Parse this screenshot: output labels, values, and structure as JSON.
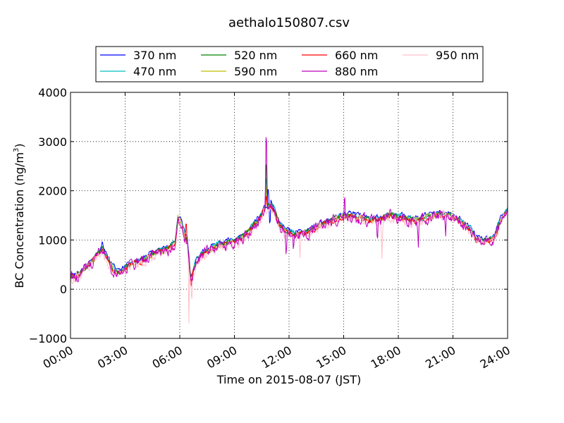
{
  "chart_data": {
    "type": "line",
    "title": "aethalo150807.csv",
    "xlabel": "Time on 2015-08-07 (JST)",
    "ylabel": "BC Concentration (ng/m",
    "ylabel_sup": "3",
    "ylabel_close": ")",
    "xlim": [
      0,
      24
    ],
    "ylim": [
      -1000,
      4000
    ],
    "x_ticks": [
      0,
      3,
      6,
      9,
      12,
      15,
      18,
      21,
      24
    ],
    "x_tick_labels": [
      "00:00",
      "03:00",
      "06:00",
      "09:00",
      "12:00",
      "15:00",
      "18:00",
      "21:00",
      "24:00"
    ],
    "y_ticks": [
      -1000,
      0,
      1000,
      2000,
      3000,
      4000
    ],
    "y_tick_labels": [
      "−1000",
      "0",
      "1000",
      "2000",
      "3000",
      "4000"
    ],
    "grid": true,
    "legend_position": "top-center",
    "anchors": [
      [
        0.0,
        250
      ],
      [
        0.25,
        250
      ],
      [
        0.5,
        300
      ],
      [
        0.75,
        400
      ],
      [
        1.0,
        480
      ],
      [
        1.25,
        580
      ],
      [
        1.5,
        700
      ],
      [
        1.75,
        800
      ],
      [
        2.0,
        650
      ],
      [
        2.25,
        450
      ],
      [
        2.5,
        350
      ],
      [
        2.75,
        330
      ],
      [
        3.0,
        420
      ],
      [
        3.25,
        480
      ],
      [
        3.5,
        520
      ],
      [
        3.75,
        560
      ],
      [
        4.0,
        600
      ],
      [
        4.25,
        650
      ],
      [
        4.5,
        700
      ],
      [
        4.75,
        750
      ],
      [
        5.0,
        780
      ],
      [
        5.25,
        800
      ],
      [
        5.5,
        850
      ],
      [
        5.75,
        950
      ],
      [
        5.9,
        1450
      ],
      [
        6.1,
        1350
      ],
      [
        6.3,
        1050
      ],
      [
        6.4,
        1000
      ],
      [
        6.5,
        650
      ],
      [
        6.6,
        200
      ],
      [
        6.7,
        300
      ],
      [
        6.9,
        550
      ],
      [
        7.2,
        700
      ],
      [
        7.5,
        760
      ],
      [
        7.8,
        840
      ],
      [
        8.0,
        880
      ],
      [
        8.2,
        900
      ],
      [
        8.5,
        930
      ],
      [
        8.8,
        960
      ],
      [
        9.0,
        980
      ],
      [
        9.25,
        1000
      ],
      [
        9.5,
        1060
      ],
      [
        9.75,
        1160
      ],
      [
        10.0,
        1280
      ],
      [
        10.25,
        1380
      ],
      [
        10.5,
        1500
      ],
      [
        10.6,
        1600
      ],
      [
        10.75,
        1650
      ],
      [
        11.0,
        1700
      ],
      [
        11.25,
        1550
      ],
      [
        11.5,
        1300
      ],
      [
        11.75,
        1200
      ],
      [
        12.0,
        1150
      ],
      [
        12.5,
        1120
      ],
      [
        13.0,
        1150
      ],
      [
        13.5,
        1250
      ],
      [
        14.0,
        1350
      ],
      [
        14.5,
        1420
      ],
      [
        15.0,
        1480
      ],
      [
        15.5,
        1500
      ],
      [
        16.0,
        1450
      ],
      [
        16.5,
        1400
      ],
      [
        17.0,
        1420
      ],
      [
        17.5,
        1500
      ],
      [
        18.0,
        1480
      ],
      [
        18.5,
        1420
      ],
      [
        19.0,
        1400
      ],
      [
        19.5,
        1450
      ],
      [
        20.0,
        1500
      ],
      [
        20.5,
        1520
      ],
      [
        21.0,
        1480
      ],
      [
        21.5,
        1350
      ],
      [
        22.0,
        1200
      ],
      [
        22.3,
        1000
      ],
      [
        22.6,
        980
      ],
      [
        23.0,
        1000
      ],
      [
        23.3,
        1050
      ],
      [
        23.6,
        1400
      ],
      [
        24.0,
        1600
      ]
    ],
    "series": [
      {
        "name": "370 nm",
        "color": "#0000ff",
        "offset": 50,
        "noise": 90,
        "events": [
          [
            1.75,
            120,
            0.15
          ],
          [
            10.85,
            500,
            0.05
          ],
          [
            10.95,
            -700,
            0.04
          ]
        ]
      },
      {
        "name": "470 nm",
        "color": "#00bfbf",
        "offset": 30,
        "noise": 90,
        "events": [
          [
            10.75,
            800,
            0.05
          ]
        ]
      },
      {
        "name": "520 nm",
        "color": "#008000",
        "offset": 10,
        "noise": 95,
        "events": [
          [
            10.75,
            1250,
            0.05
          ]
        ]
      },
      {
        "name": "590 nm",
        "color": "#bfbf00",
        "offset": 0,
        "noise": 95,
        "events": [
          [
            10.75,
            600,
            0.05
          ]
        ]
      },
      {
        "name": "660 nm",
        "color": "#ff0000",
        "offset": -10,
        "noise": 110,
        "events": [
          [
            6.35,
            400,
            0.05
          ],
          [
            6.62,
            -200,
            0.05
          ],
          [
            10.75,
            300,
            0.05
          ]
        ]
      },
      {
        "name": "880 nm",
        "color": "#bf00bf",
        "offset": -20,
        "noise": 200,
        "events": [
          [
            10.75,
            2000,
            0.06
          ],
          [
            11.85,
            -450,
            0.06
          ],
          [
            12.25,
            -350,
            0.05
          ],
          [
            15.05,
            500,
            0.05
          ],
          [
            16.85,
            -400,
            0.05
          ],
          [
            19.1,
            -400,
            0.05
          ],
          [
            20.6,
            -350,
            0.05
          ]
        ]
      },
      {
        "name": "950 nm",
        "color": "#ffc0cb",
        "offset": -40,
        "noise": 180,
        "events": [
          [
            6.5,
            -1200,
            0.04
          ],
          [
            6.65,
            -900,
            0.03
          ],
          [
            12.6,
            -500,
            0.05
          ],
          [
            17.1,
            -700,
            0.05
          ],
          [
            22.35,
            -200,
            0.05
          ]
        ]
      }
    ]
  }
}
